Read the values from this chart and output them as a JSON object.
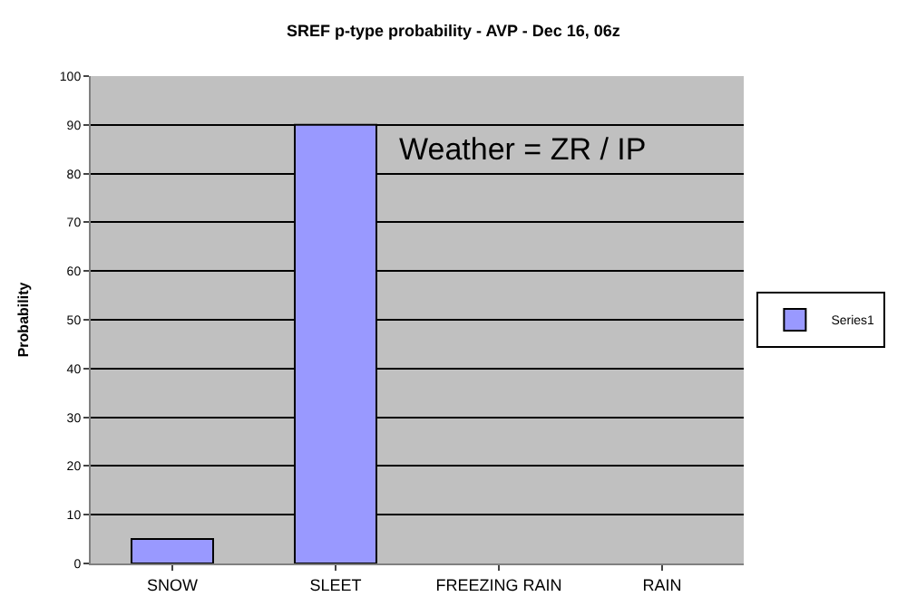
{
  "chart_data": {
    "type": "bar",
    "title": "SREF p-type probability - AVP - Dec 16, 06z",
    "ylabel": "Probability",
    "categories": [
      "SNOW",
      "SLEET",
      "FREEZING RAIN",
      "RAIN"
    ],
    "series": [
      {
        "name": "Series1",
        "color": "#9999ff",
        "values": [
          5,
          90,
          0,
          0
        ]
      }
    ],
    "ylim": [
      0,
      100
    ],
    "yticks": [
      0,
      10,
      20,
      30,
      40,
      50,
      60,
      70,
      80,
      90,
      100
    ],
    "grid": "y",
    "legend": "right",
    "annotations": [
      "Weather = ZR / IP"
    ]
  }
}
